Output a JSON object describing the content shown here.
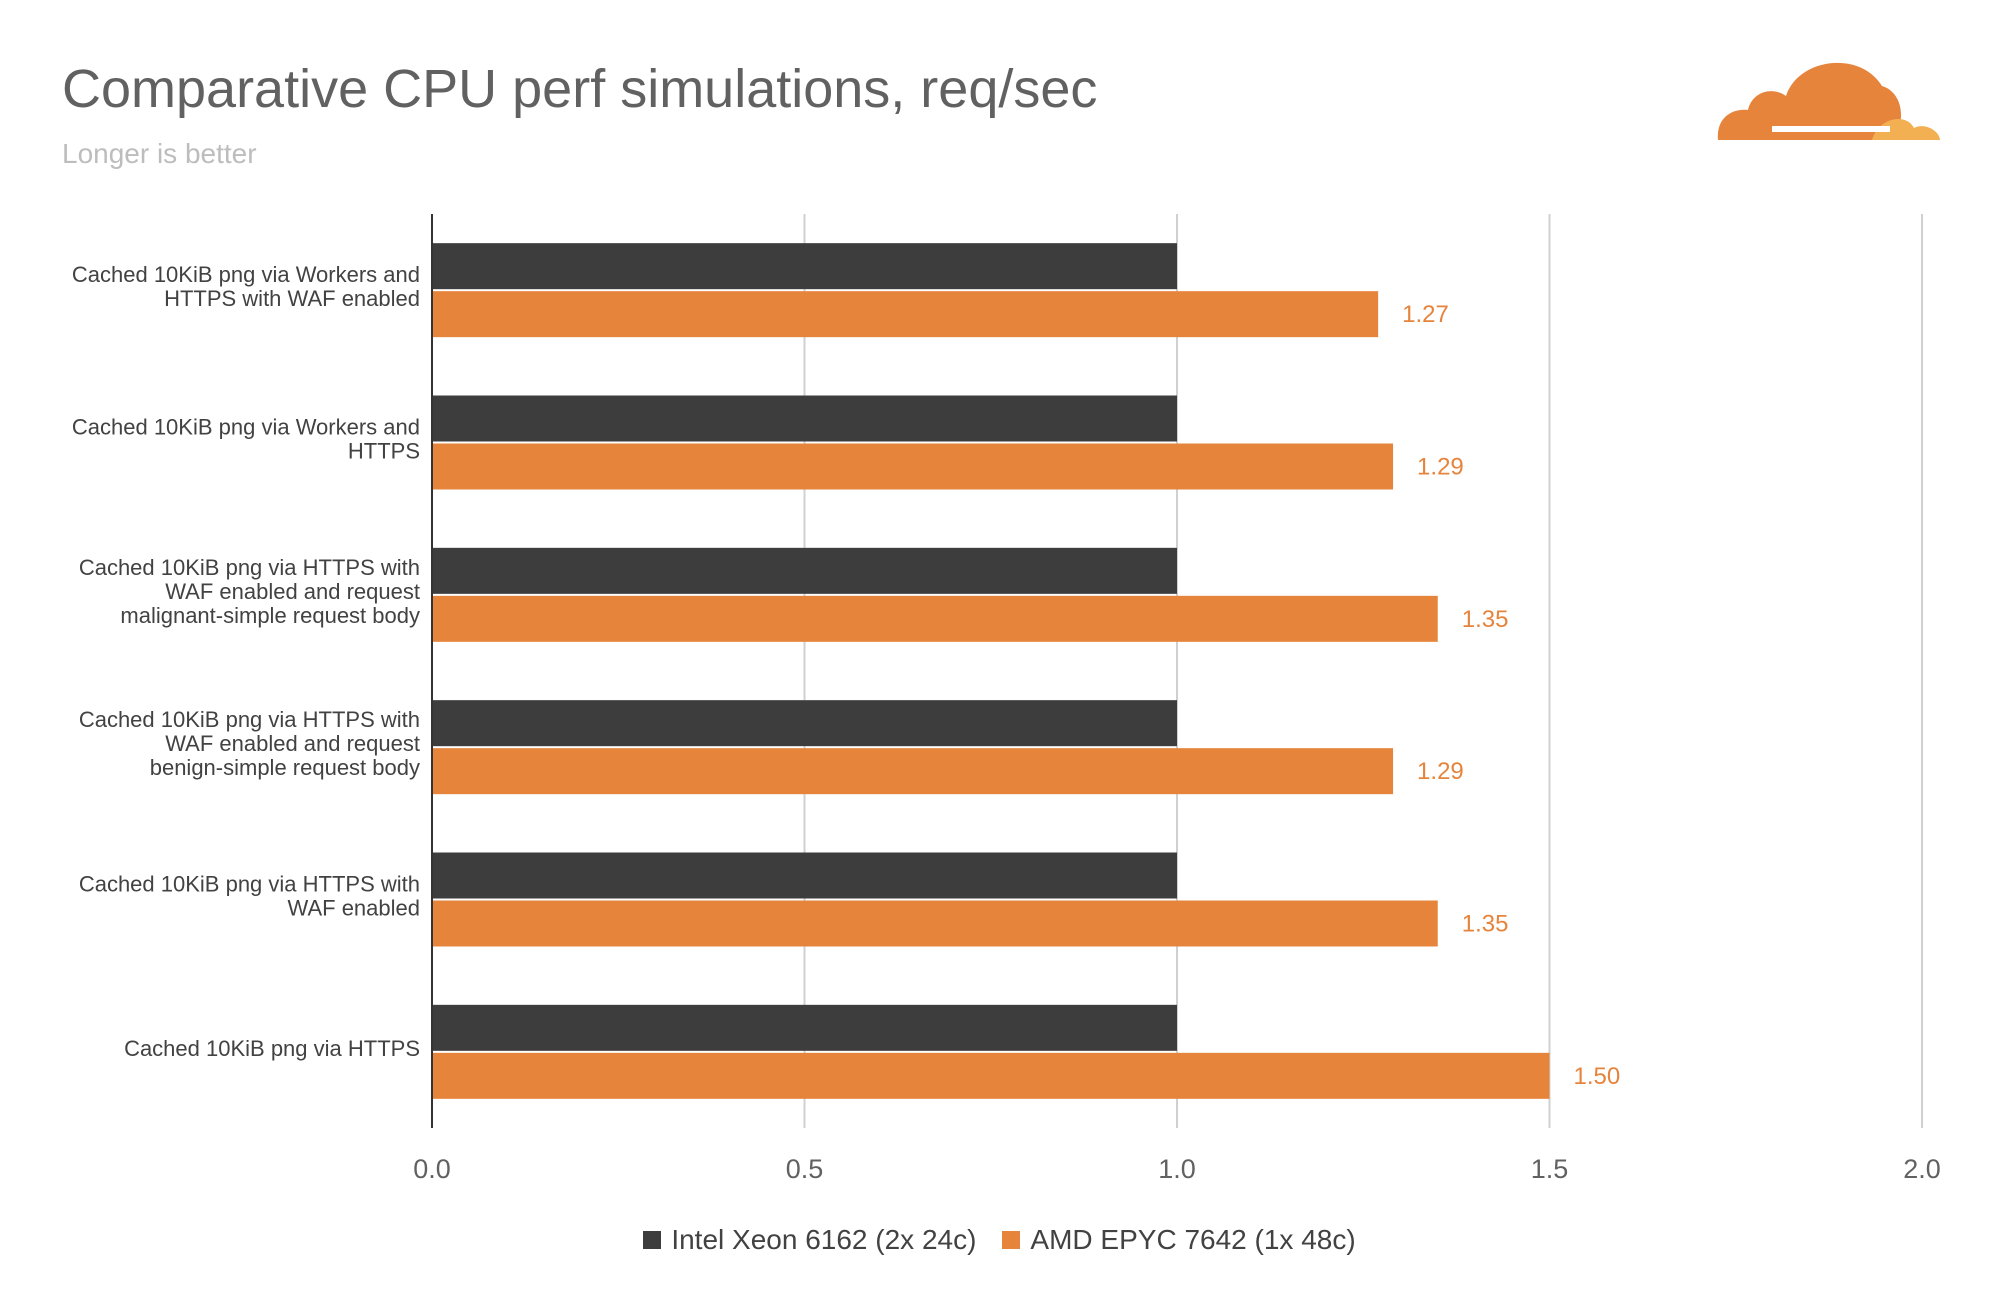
{
  "header": {
    "title": "Comparative CPU perf simulations, req/sec",
    "subtitle": "Longer is better"
  },
  "colors": {
    "intel": "#3d3d3d",
    "amd": "#e6843c",
    "logo_primary": "#e6843c",
    "logo_secondary": "#f3b052",
    "grid": "#d0d0d0",
    "axis": "#333333"
  },
  "logo": {
    "icon": "cloud-logo-icon"
  },
  "chart_data": {
    "type": "bar",
    "orientation": "horizontal",
    "categories": [
      "Cached 10KiB png via Workers and\nHTTPS with WAF enabled",
      "Cached 10KiB png via Workers and\nHTTPS",
      "Cached 10KiB png via HTTPS with\nWAF enabled and request\nmalignant-simple request body",
      "Cached 10KiB png via HTTPS with\nWAF enabled and request\nbenign-simple request body",
      "Cached 10KiB png via HTTPS with\nWAF enabled",
      "Cached 10KiB png via HTTPS"
    ],
    "series": [
      {
        "name": "Intel Xeon 6162 (2x 24c)",
        "values": [
          1.0,
          1.0,
          1.0,
          1.0,
          1.0,
          1.0
        ],
        "show_labels": false
      },
      {
        "name": "AMD EPYC 7642 (1x 48c)",
        "values": [
          1.27,
          1.29,
          1.35,
          1.29,
          1.35,
          1.5
        ],
        "labels": [
          "1.27",
          "1.29",
          "1.35",
          "1.29",
          "1.35",
          "1.50"
        ],
        "show_labels": true
      }
    ],
    "xlim": [
      0,
      2.0
    ],
    "xticks": [
      "0.0",
      "0.5",
      "1.0",
      "1.5",
      "2.0"
    ],
    "grid": true,
    "legend_position": "bottom"
  }
}
